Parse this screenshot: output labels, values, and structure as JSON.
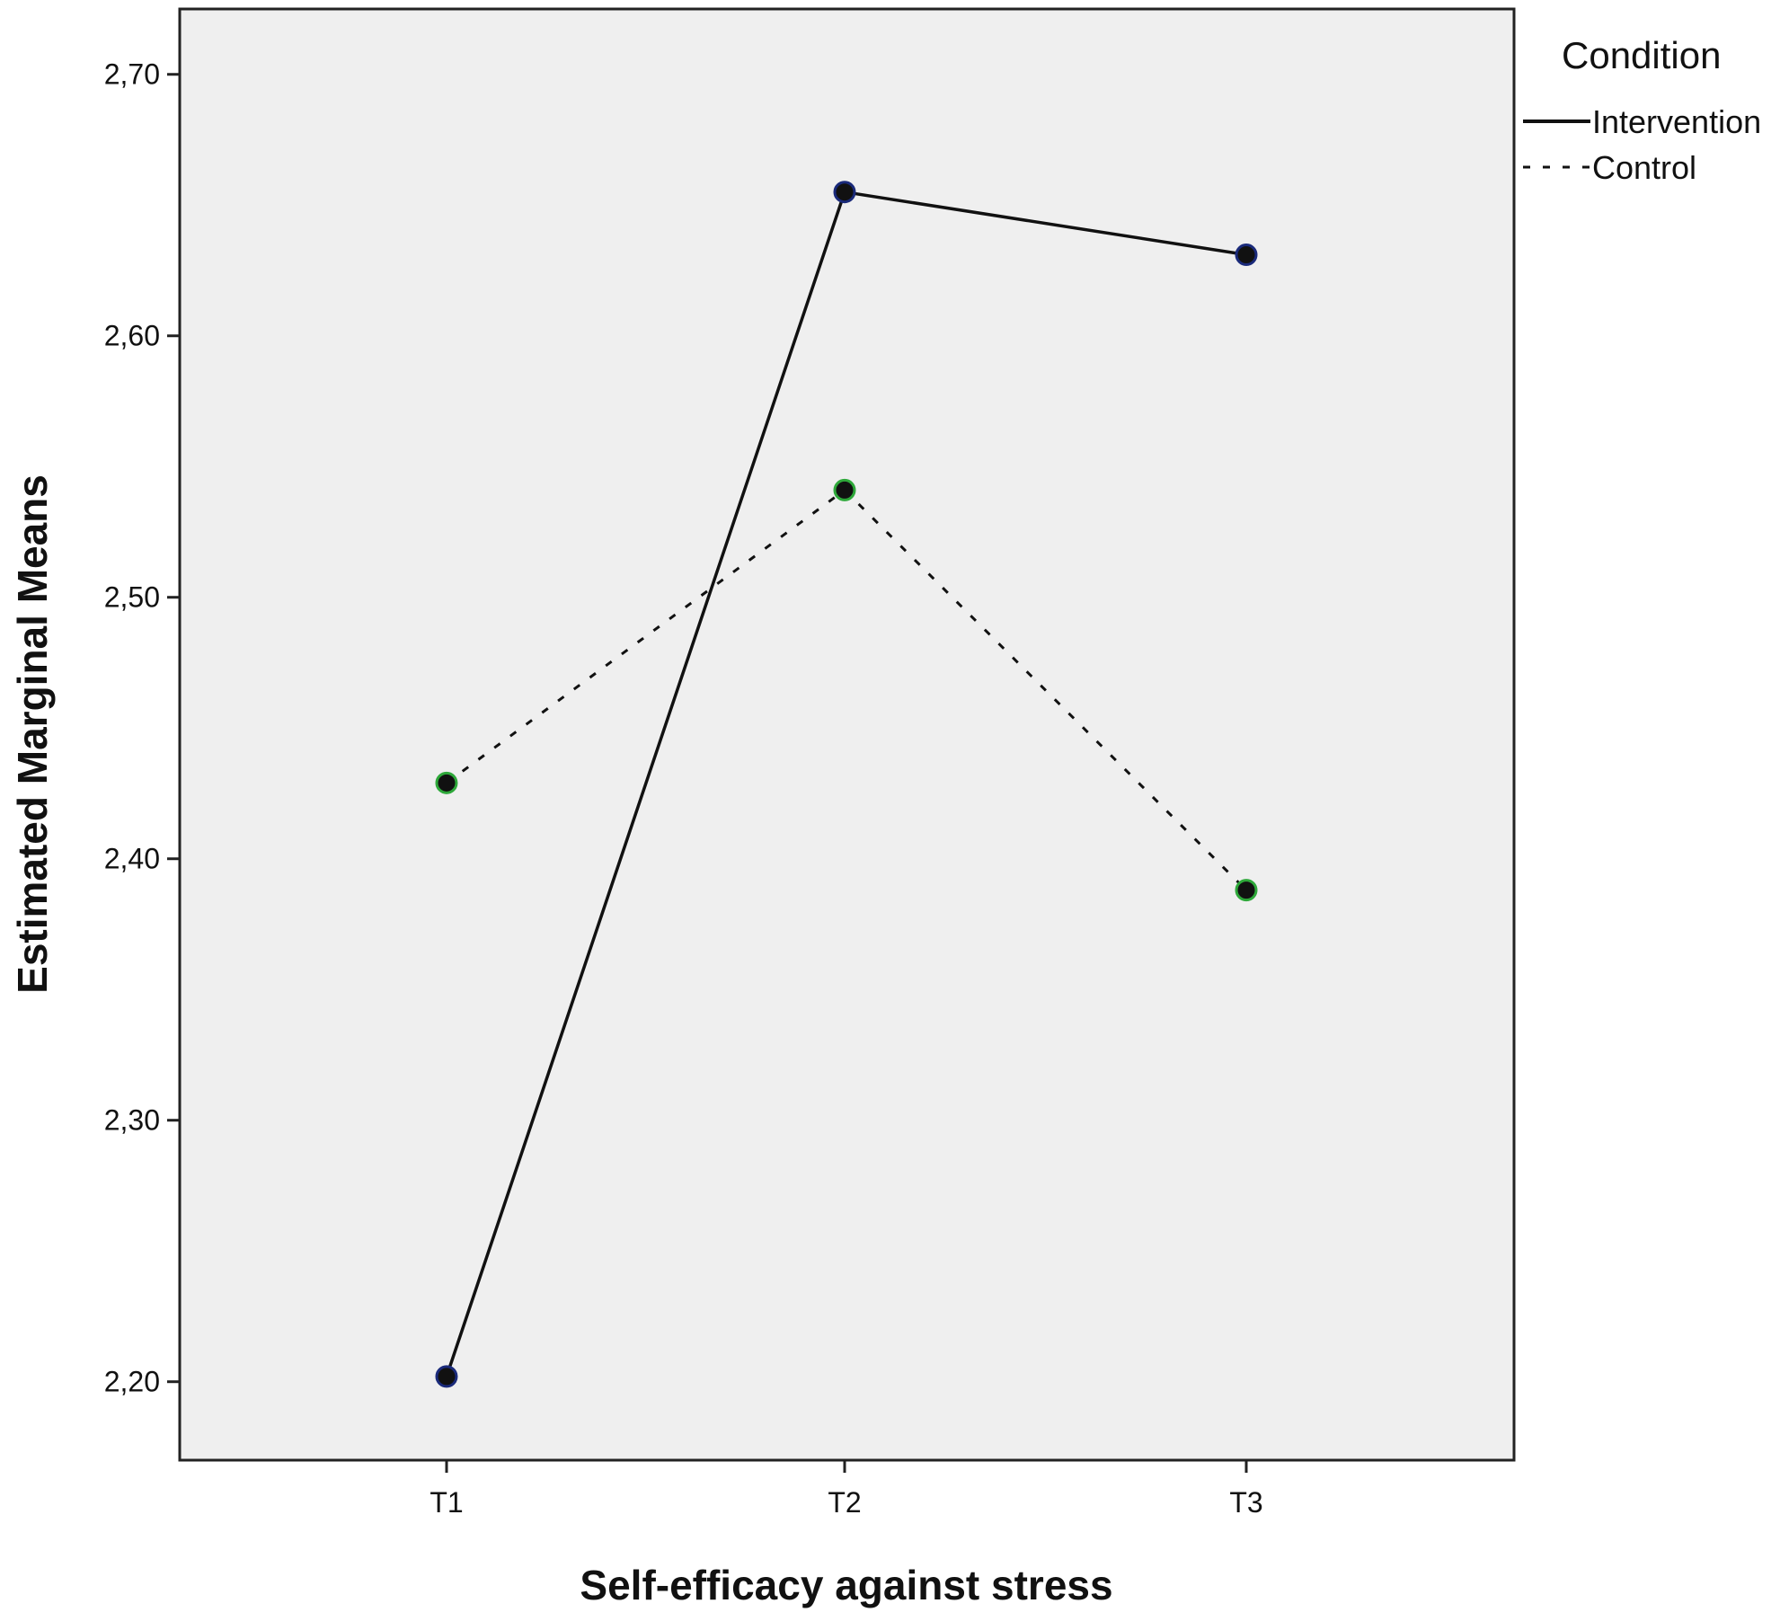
{
  "chart_data": {
    "type": "line",
    "title": "",
    "xlabel": "Self-efficacy against stress",
    "ylabel": "Estimated Marginal Means",
    "categories": [
      "T1",
      "T2",
      "T3"
    ],
    "ylim": [
      2.17,
      2.725
    ],
    "yticks": [
      "2,20",
      "2,30",
      "2,40",
      "2,50",
      "2,60",
      "2,70"
    ],
    "ytick_values": [
      2.2,
      2.3,
      2.4,
      2.5,
      2.6,
      2.7
    ],
    "grid": false,
    "legend": {
      "title": "Condition",
      "placement": "top-right, outside plot"
    },
    "series": [
      {
        "name": "Intervention",
        "style": "solid",
        "marker_color": "#1a2a7a",
        "values": [
          2.202,
          2.655,
          2.631
        ]
      },
      {
        "name": "Control",
        "style": "dashed",
        "marker_color": "#2ea83a",
        "values": [
          2.429,
          2.541,
          2.388
        ]
      }
    ],
    "colors": {
      "plot_background": "#efefef",
      "line": "#111111"
    }
  }
}
